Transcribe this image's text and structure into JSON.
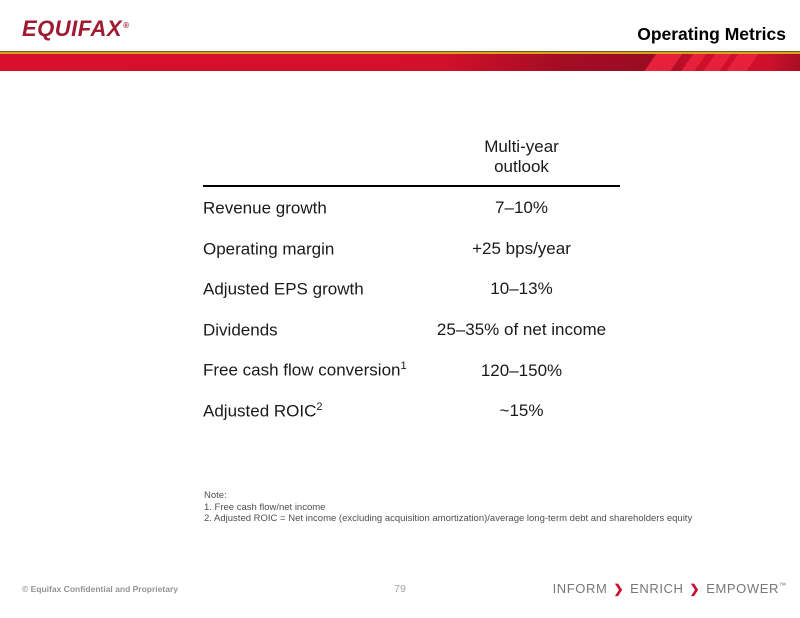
{
  "header": {
    "logo_text": "EQUIFAX",
    "registered_mark": "®",
    "title": "Operating Metrics"
  },
  "table": {
    "column_header_line1": "Multi-year",
    "column_header_line2": "outlook",
    "rows": [
      {
        "label": "Revenue growth",
        "sup": "",
        "value": "7–10%"
      },
      {
        "label": "Operating margin",
        "sup": "",
        "value": "+25 bps/year"
      },
      {
        "label": "Adjusted EPS growth",
        "sup": "",
        "value": "10–13%"
      },
      {
        "label": "Dividends",
        "sup": "",
        "value": "25–35% of net income"
      },
      {
        "label": "Free cash flow conversion",
        "sup": "1",
        "value": "120–150%"
      },
      {
        "label": "Adjusted ROIC",
        "sup": "2",
        "value": "~15%"
      }
    ]
  },
  "notes": {
    "heading": "Note:",
    "items": [
      "1. Free cash flow/net income",
      "2. Adjusted ROIC = Net income (excluding acquisition amortization)/average long-term debt and shareholders equity"
    ]
  },
  "footer": {
    "copyright": "© Equifax Confidential and Proprietary",
    "page_number": "79",
    "tagline_words": [
      "INFORM",
      "ENRICH",
      "EMPOWER"
    ],
    "tagline_separator": "❯",
    "trademark": "™"
  },
  "colors": {
    "brand_red": "#9e1b32",
    "banner_red": "#d8102c",
    "banner_dark_red": "#9a0c22",
    "stripe_red": "#e7213a",
    "gold": "#d7a31f",
    "tagline_gray": "#75787b",
    "chevron_red": "#c8102e"
  }
}
